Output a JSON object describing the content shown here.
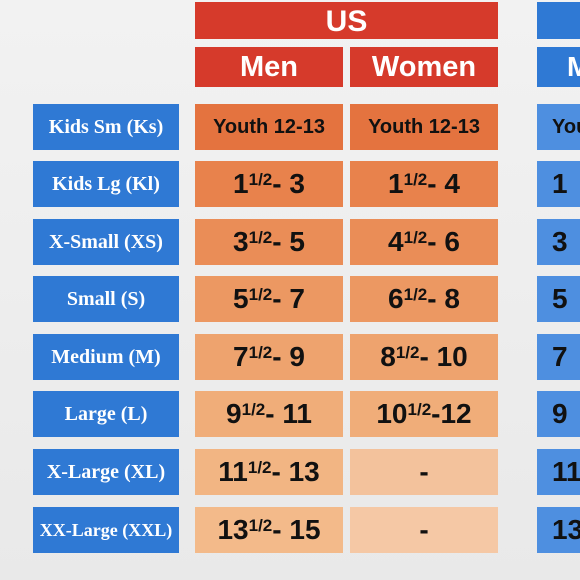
{
  "header": {
    "group_label": "US",
    "columns": [
      "Men",
      "Women"
    ],
    "next_group_column_partial": "M"
  },
  "rows": [
    {
      "size": "Kids Sm (Ks)",
      "men": "Youth 12-13",
      "women": "Youth 12-13",
      "next": "You"
    },
    {
      "size": "Kids Lg (Kl)",
      "men": {
        "whole": "1",
        "frac": "1/2",
        "rest": " - 3"
      },
      "women": {
        "whole": "1",
        "frac": "1/2",
        "rest": " - 4"
      },
      "next": "1"
    },
    {
      "size": "X-Small (XS)",
      "men": {
        "whole": "3",
        "frac": "1/2",
        "rest": " - 5"
      },
      "women": {
        "whole": "4",
        "frac": "1/2",
        "rest": " - 6"
      },
      "next": "3"
    },
    {
      "size": "Small (S)",
      "men": {
        "whole": "5",
        "frac": "1/2",
        "rest": " - 7"
      },
      "women": {
        "whole": "6",
        "frac": "1/2",
        "rest": " - 8"
      },
      "next": "5"
    },
    {
      "size": "Medium (M)",
      "men": {
        "whole": "7",
        "frac": "1/2",
        "rest": " - 9"
      },
      "women": {
        "whole": "8",
        "frac": "1/2",
        "rest": " - 10"
      },
      "next": "7"
    },
    {
      "size": "Large (L)",
      "men": {
        "whole": "9",
        "frac": "1/2",
        "rest": " - 11"
      },
      "women": {
        "whole": "10",
        "frac": "1/2",
        "rest": "-12"
      },
      "next": "9"
    },
    {
      "size": "X-Large (XL)",
      "men": {
        "whole": "11",
        "frac": "1/2",
        "rest": " - 13"
      },
      "women": "-",
      "next": "11"
    },
    {
      "size": "XX-Large (XXL)",
      "men": {
        "whole": "13",
        "frac": "1/2",
        "rest": " - 15"
      },
      "women": "-",
      "next": "13"
    }
  ],
  "colors": {
    "header_red": "#d63a2b",
    "label_blue": "#2f79d4",
    "men_cells": [
      "#e4733f",
      "#e8824c",
      "#ea8d57",
      "#ec9862",
      "#eea36e",
      "#f0ad79",
      "#f2b583",
      "#f3ba8a"
    ],
    "women_cells": [
      "#e4733f",
      "#e8824c",
      "#ea8d57",
      "#ec9862",
      "#eea36e",
      "#f0ad79",
      "#f3c29c",
      "#f5c8a5"
    ]
  }
}
